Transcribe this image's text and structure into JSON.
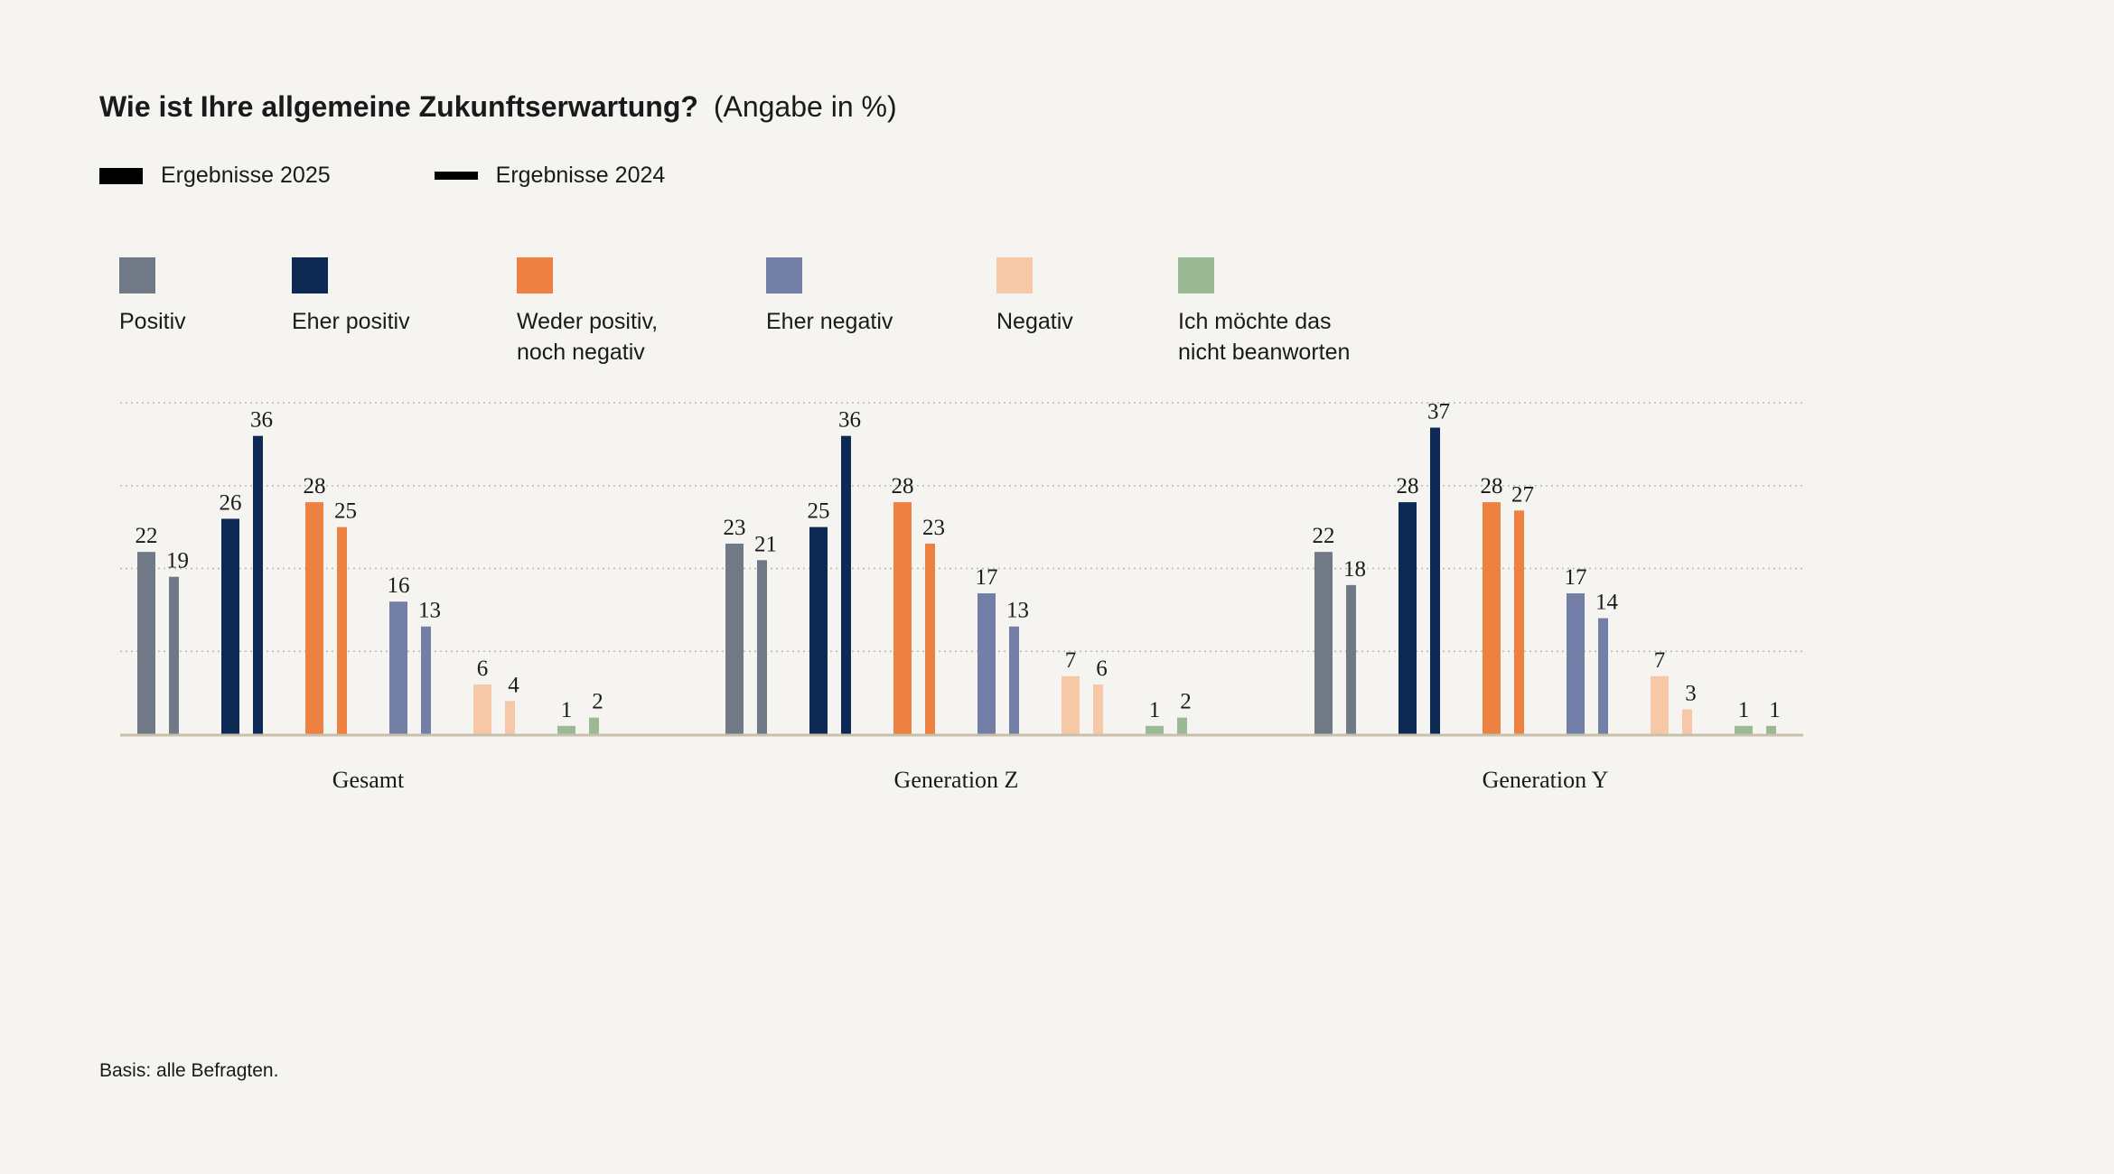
{
  "title": "Wie ist Ihre allgemeine Zukunftserwartung?",
  "subtitle": "(Angabe in %)",
  "year_legend": [
    {
      "label": "Ergebnisse 2025"
    },
    {
      "label": "Ergebnisse 2024"
    }
  ],
  "colors": {
    "background": "#f5f4f1",
    "gridline": "#b9b6ae",
    "baseline": "#c9c0ac"
  },
  "categories_legend": [
    {
      "label": "Positiv",
      "color": "#6f7a86"
    },
    {
      "label": "Eher positiv",
      "color": "#0d2a55"
    },
    {
      "label": "Weder positiv,\nnoch negativ",
      "color": "#ec8142"
    },
    {
      "label": "Eher negativ",
      "color": "#737fa6"
    },
    {
      "label": "Negativ",
      "color": "#f7c8a8"
    },
    {
      "label": "Ich möchte das\nnicht beanworten",
      "color": "#9cb995"
    }
  ],
  "chart_data": {
    "type": "bar",
    "groups": [
      "Gesamt",
      "Generation Z",
      "Generation Y"
    ],
    "categories": [
      "Positiv",
      "Eher positiv",
      "Weder positiv, noch negativ",
      "Eher negativ",
      "Negativ",
      "Ich möchte das nicht beanworten"
    ],
    "series": [
      {
        "name": "Ergebnisse 2025",
        "values": [
          [
            22,
            26,
            28,
            16,
            6,
            1
          ],
          [
            23,
            25,
            28,
            17,
            7,
            1
          ],
          [
            22,
            28,
            28,
            17,
            7,
            1
          ]
        ]
      },
      {
        "name": "Ergebnisse 2024",
        "values": [
          [
            19,
            36,
            25,
            13,
            4,
            2
          ],
          [
            21,
            36,
            23,
            13,
            6,
            2
          ],
          [
            18,
            37,
            27,
            14,
            3,
            1
          ]
        ]
      }
    ],
    "ylim": [
      0,
      40
    ],
    "grid": true,
    "xlabel": "",
    "ylabel": ""
  },
  "footnote": "Basis: alle Befragten."
}
